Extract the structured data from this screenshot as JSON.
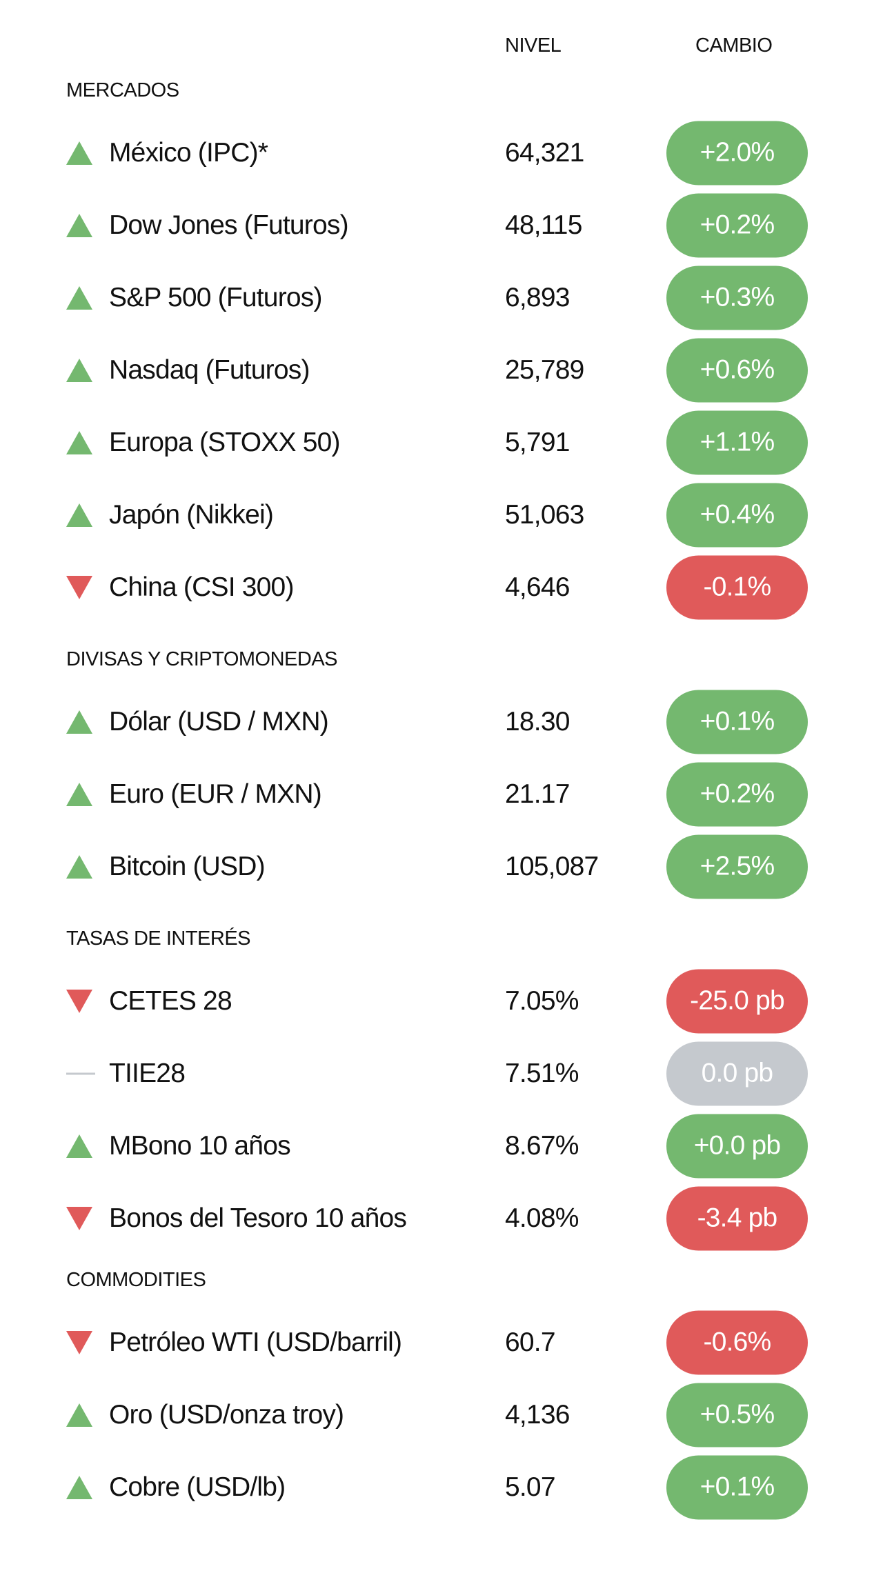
{
  "columns": {
    "nivel": "NIVEL",
    "cambio": "CAMBIO"
  },
  "colors": {
    "up": "#74b86f",
    "down": "#e05a5a",
    "flat": "#c5c9ce"
  },
  "sections": [
    {
      "title": "MERCADOS",
      "rows": [
        {
          "name": "México (IPC)*",
          "level": "64,321",
          "change": "+2.0%",
          "direction": "up"
        },
        {
          "name": "Dow Jones (Futuros)",
          "level": "48,115",
          "change": "+0.2%",
          "direction": "up"
        },
        {
          "name": "S&P 500 (Futuros)",
          "level": "6,893",
          "change": "+0.3%",
          "direction": "up"
        },
        {
          "name": "Nasdaq  (Futuros)",
          "level": "25,789",
          "change": "+0.6%",
          "direction": "up"
        },
        {
          "name": "Europa (STOXX 50)",
          "level": "5,791",
          "change": "+1.1%",
          "direction": "up"
        },
        {
          "name": "Japón (Nikkei)",
          "level": "51,063",
          "change": "+0.4%",
          "direction": "up"
        },
        {
          "name": "China (CSI 300)",
          "level": "4,646",
          "change": "-0.1%",
          "direction": "down"
        }
      ]
    },
    {
      "title": "DIVISAS Y CRIPTOMONEDAS",
      "rows": [
        {
          "name": "Dólar (USD / MXN)",
          "level": "18.30",
          "change": "+0.1%",
          "direction": "up"
        },
        {
          "name": "Euro (EUR / MXN)",
          "level": "21.17",
          "change": "+0.2%",
          "direction": "up"
        },
        {
          "name": "Bitcoin (USD)",
          "level": "105,087",
          "change": "+2.5%",
          "direction": "up"
        }
      ]
    },
    {
      "title": "TASAS DE INTERÉS",
      "rows": [
        {
          "name": "CETES 28",
          "level": "7.05%",
          "change": "-25.0 pb",
          "direction": "down"
        },
        {
          "name": "TIIE28",
          "level": "7.51%",
          "change": "0.0 pb",
          "direction": "flat"
        },
        {
          "name": "MBono 10 años",
          "level": "8.67%",
          "change": "+0.0 pb",
          "direction": "up"
        },
        {
          "name": "Bonos del Tesoro 10 años",
          "level": "4.08%",
          "change": "-3.4 pb",
          "direction": "down"
        }
      ]
    },
    {
      "title": "COMMODITIES",
      "rows": [
        {
          "name": "Petróleo WTI (USD/barril)",
          "level": "60.7",
          "change": "-0.6%",
          "direction": "down"
        },
        {
          "name": "Oro (USD/onza troy)",
          "level": "4,136",
          "change": "+0.5%",
          "direction": "up"
        },
        {
          "name": "Cobre (USD/lb)",
          "level": "5.07",
          "change": "+0.1%",
          "direction": "up"
        }
      ]
    }
  ]
}
